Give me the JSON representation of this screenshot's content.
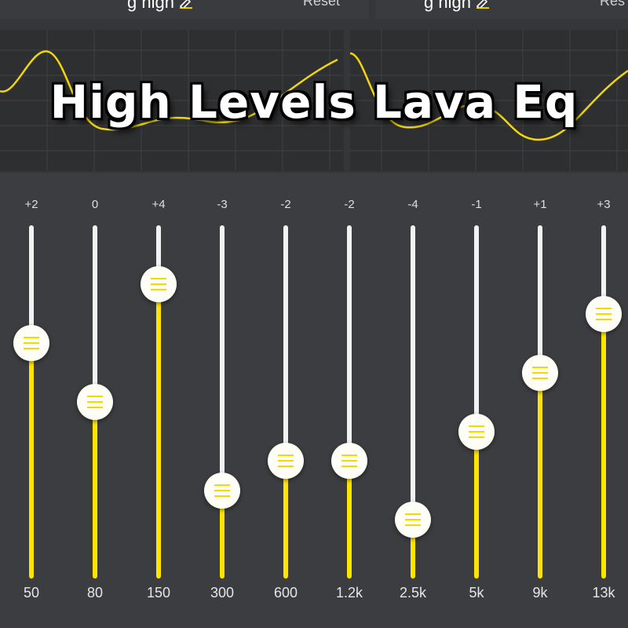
{
  "header": {
    "left": {
      "preset_name": "g high",
      "reset_label": "Reset"
    },
    "right": {
      "preset_name": "g high",
      "reset_label": "Res"
    }
  },
  "title": "High Levels Lava Eq",
  "colors": {
    "background": "#3c3d40",
    "graph_background": "#2e2f31",
    "accent_yellow": "#ffe400",
    "track_white": "#f2f2f2",
    "knob": "#fefef6"
  },
  "eq": {
    "range_db": [
      -6,
      6
    ],
    "bands": [
      {
        "freq": "50",
        "label": "+2",
        "gain": 2
      },
      {
        "freq": "80",
        "label": "0",
        "gain": 0
      },
      {
        "freq": "150",
        "label": "+4",
        "gain": 4
      },
      {
        "freq": "300",
        "label": "-3",
        "gain": -3
      },
      {
        "freq": "600",
        "label": "-2",
        "gain": -2
      },
      {
        "freq": "1.2k",
        "label": "-2",
        "gain": -2
      },
      {
        "freq": "2.5k",
        "label": "-4",
        "gain": -4
      },
      {
        "freq": "5k",
        "label": "-1",
        "gain": -1
      },
      {
        "freq": "9k",
        "label": "+1",
        "gain": 1
      },
      {
        "freq": "13k",
        "label": "+3",
        "gain": 3
      }
    ]
  }
}
